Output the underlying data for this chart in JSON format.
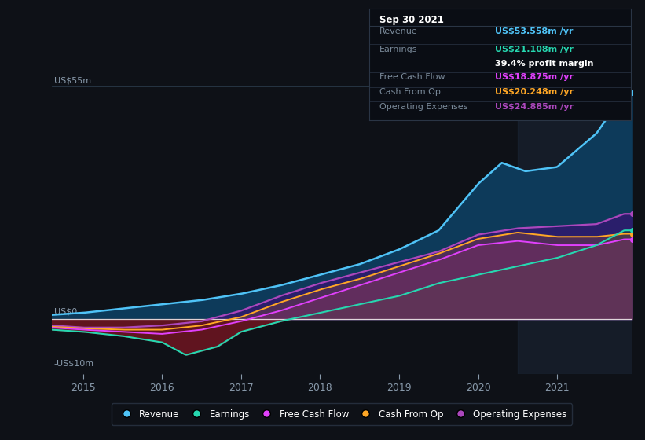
{
  "bg_color": "#0e1117",
  "chart_bg": "#0e1117",
  "y_label_top": "US$55m",
  "y_label_zero": "US$0",
  "y_label_neg": "-US$10m",
  "x_ticks": [
    "2015",
    "2016",
    "2017",
    "2018",
    "2019",
    "2020",
    "2021"
  ],
  "info_box": {
    "date": "Sep 30 2021",
    "revenue_label": "Revenue",
    "revenue_value": "US$53.558m /yr",
    "revenue_color": "#4fc3f7",
    "earnings_label": "Earnings",
    "earnings_value": "US$21.108m /yr",
    "earnings_color": "#26d7b0",
    "profit_margin": "39.4% profit margin",
    "fcf_label": "Free Cash Flow",
    "fcf_value": "US$18.875m /yr",
    "fcf_color": "#e040fb",
    "cashop_label": "Cash From Op",
    "cashop_value": "US$20.248m /yr",
    "cashop_color": "#ffa726",
    "opex_label": "Operating Expenses",
    "opex_value": "US$24.885m /yr",
    "opex_color": "#ab47bc"
  },
  "legend": [
    {
      "label": "Revenue",
      "color": "#4fc3f7"
    },
    {
      "label": "Earnings",
      "color": "#26d7b0"
    },
    {
      "label": "Free Cash Flow",
      "color": "#e040fb"
    },
    {
      "label": "Cash From Op",
      "color": "#ffa726"
    },
    {
      "label": "Operating Expenses",
      "color": "#ab47bc"
    }
  ],
  "revenue_line_color": "#4fc3f7",
  "earnings_line_color": "#26d7b0",
  "fcf_line_color": "#e040fb",
  "cashop_line_color": "#ffa726",
  "opex_line_color": "#ab47bc",
  "ylim": [
    -13,
    62
  ],
  "xlim_start": 2014.6,
  "xlim_end": 2021.95
}
